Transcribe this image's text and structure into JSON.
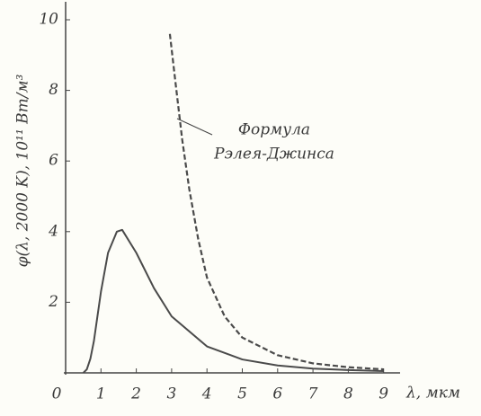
{
  "chart_data": {
    "type": "line",
    "x_label": "λ, мкм",
    "y_label": "φ(λ, 2000 K), 10¹¹ Вт/м³",
    "annotation": [
      "Формула",
      "Рэлея-Джинса"
    ],
    "xlim": [
      0,
      9.5
    ],
    "ylim": [
      0,
      10.5
    ],
    "xticks": [
      0,
      1,
      2,
      3,
      4,
      5,
      6,
      7,
      8,
      9
    ],
    "yticks": [
      2,
      4,
      6,
      8,
      10
    ],
    "series": [
      {
        "color": "#4a4a4a",
        "dash": false,
        "x": [
          0.5,
          0.6,
          0.7,
          0.8,
          0.9,
          1.0,
          1.2,
          1.45,
          1.6,
          2,
          2.5,
          3,
          4,
          5,
          6,
          7,
          8,
          9
        ],
        "values": [
          0,
          0.1,
          0.4,
          0.9,
          1.6,
          2.3,
          3.4,
          4.0,
          4.05,
          3.4,
          2.4,
          1.6,
          0.75,
          0.38,
          0.21,
          0.12,
          0.08,
          0.05
        ]
      },
      {
        "color": "#4a4a4a",
        "dash": true,
        "x": [
          2.95,
          3.1,
          3.3,
          3.5,
          3.75,
          4,
          4.5,
          5,
          6,
          7,
          8,
          9
        ],
        "values": [
          9.6,
          8.3,
          6.6,
          5.2,
          3.8,
          2.7,
          1.6,
          1.0,
          0.5,
          0.27,
          0.16,
          0.1
        ]
      }
    ]
  }
}
